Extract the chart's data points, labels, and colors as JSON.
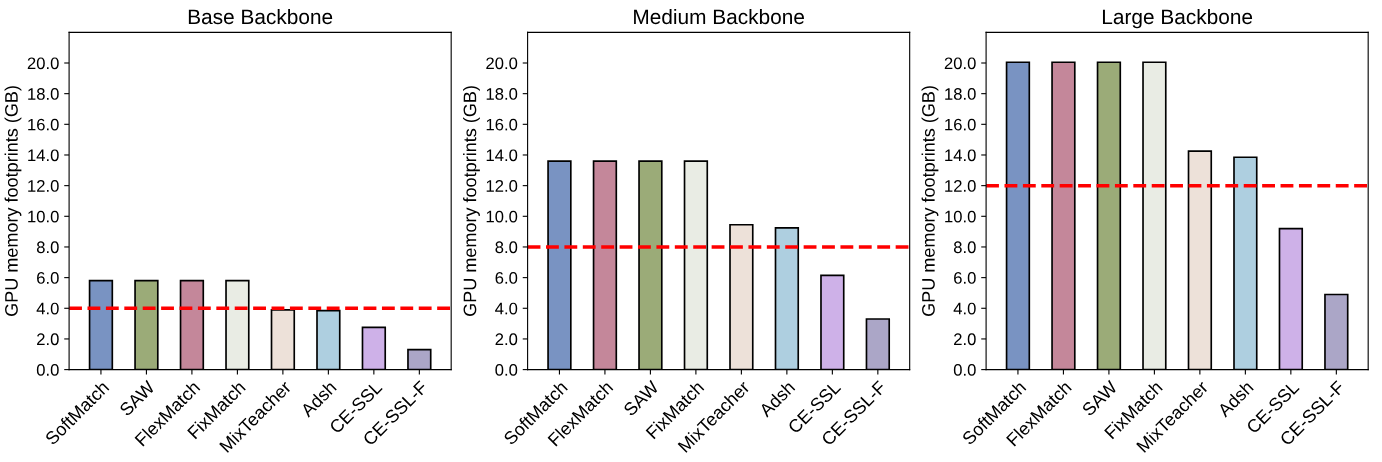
{
  "chart_data": [
    {
      "type": "bar",
      "title": "Base Backbone",
      "ylabel": "GPU memory footprints (GB)",
      "categories": [
        "SoftMatch",
        "SAW",
        "FlexMatch",
        "FixMatch",
        "MixTeacher",
        "Adsh",
        "CE-SSL",
        "CE-SSL-F"
      ],
      "values": [
        5.8,
        5.8,
        5.8,
        5.8,
        3.9,
        3.85,
        2.75,
        1.3
      ],
      "colors": [
        "#7993c2",
        "#9bab78",
        "#c4879a",
        "#e9ece4",
        "#ede1d9",
        "#aecfe0",
        "#ceb1e8",
        "#aba6c7"
      ],
      "ylim": [
        0,
        22
      ],
      "yticks": [
        {
          "value": 0,
          "label": "0.0"
        },
        {
          "value": 2,
          "label": "2.0"
        },
        {
          "value": 4,
          "label": "4.0"
        },
        {
          "value": 6,
          "label": "6.0"
        },
        {
          "value": 8,
          "label": "8.0"
        },
        {
          "value": 10,
          "label": "10.0"
        },
        {
          "value": 12,
          "label": "12.0"
        },
        {
          "value": 14,
          "label": "14.0"
        },
        {
          "value": 16,
          "label": "16.0"
        },
        {
          "value": 18,
          "label": "18.0"
        },
        {
          "value": 20,
          "label": "20.0"
        }
      ],
      "ref_lines": [
        {
          "axis": "y",
          "value": 4,
          "color": "#ff0000",
          "line_style": "dashed"
        }
      ],
      "grid": false,
      "legend": false
    },
    {
      "type": "bar",
      "title": "Medium Backbone",
      "ylabel": "GPU memory footprints (GB)",
      "categories": [
        "SoftMatch",
        "FlexMatch",
        "SAW",
        "FixMatch",
        "MixTeacher",
        "Adsh",
        "CE-SSL",
        "CE-SSL-F"
      ],
      "values": [
        13.6,
        13.6,
        13.6,
        13.6,
        9.45,
        9.25,
        6.15,
        3.3
      ],
      "colors": [
        "#7993c2",
        "#c4879a",
        "#9bab78",
        "#e9ece4",
        "#ede1d9",
        "#aecfe0",
        "#ceb1e8",
        "#aba6c7"
      ],
      "ylim": [
        0,
        22
      ],
      "yticks": [
        {
          "value": 0,
          "label": "0.0"
        },
        {
          "value": 2,
          "label": "2.0"
        },
        {
          "value": 4,
          "label": "4.0"
        },
        {
          "value": 6,
          "label": "6.0"
        },
        {
          "value": 8,
          "label": "8.0"
        },
        {
          "value": 10,
          "label": "10.0"
        },
        {
          "value": 12,
          "label": "12.0"
        },
        {
          "value": 14,
          "label": "14.0"
        },
        {
          "value": 16,
          "label": "16.0"
        },
        {
          "value": 18,
          "label": "18.0"
        },
        {
          "value": 20,
          "label": "20.0"
        }
      ],
      "ref_lines": [
        {
          "axis": "y",
          "value": 8,
          "color": "#ff0000",
          "line_style": "dashed"
        }
      ],
      "grid": false,
      "legend": false
    },
    {
      "type": "bar",
      "title": "Large Backbone",
      "ylabel": "GPU memory footprints (GB)",
      "categories": [
        "SoftMatch",
        "FlexMatch",
        "SAW",
        "FixMatch",
        "MixTeacher",
        "Adsh",
        "CE-SSL",
        "CE-SSL-F"
      ],
      "values": [
        20.05,
        20.05,
        20.05,
        20.05,
        14.25,
        13.85,
        9.2,
        4.9
      ],
      "colors": [
        "#7993c2",
        "#c4879a",
        "#9bab78",
        "#e9ece4",
        "#ede1d9",
        "#aecfe0",
        "#ceb1e8",
        "#aba6c7"
      ],
      "ylim": [
        0,
        22
      ],
      "yticks": [
        {
          "value": 0,
          "label": "0.0"
        },
        {
          "value": 2,
          "label": "2.0"
        },
        {
          "value": 4,
          "label": "4.0"
        },
        {
          "value": 6,
          "label": "6.0"
        },
        {
          "value": 8,
          "label": "8.0"
        },
        {
          "value": 10,
          "label": "10.0"
        },
        {
          "value": 12,
          "label": "12.0"
        },
        {
          "value": 14,
          "label": "14.0"
        },
        {
          "value": 16,
          "label": "16.0"
        },
        {
          "value": 18,
          "label": "18.0"
        },
        {
          "value": 20,
          "label": "20.0"
        }
      ],
      "ref_lines": [
        {
          "axis": "y",
          "value": 12,
          "color": "#ff0000",
          "line_style": "dashed"
        }
      ],
      "grid": false,
      "legend": false
    }
  ]
}
